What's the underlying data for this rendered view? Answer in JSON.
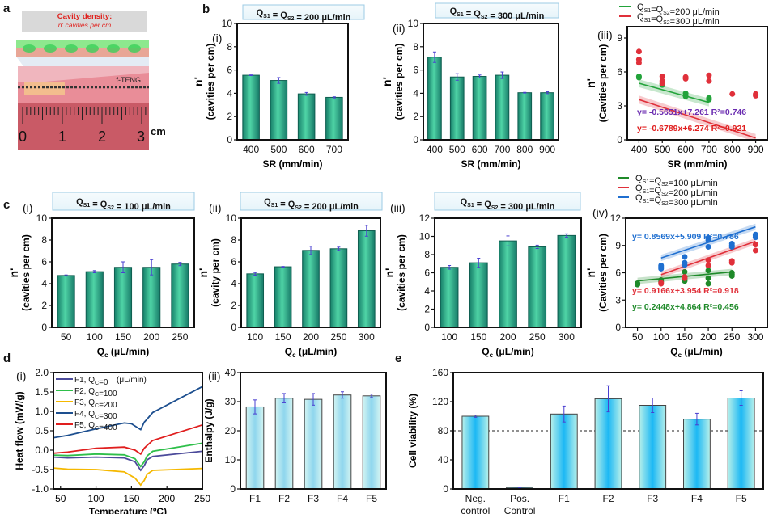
{
  "figure": {
    "panel_labels": [
      "a",
      "b",
      "c",
      "d",
      "e"
    ],
    "panel_a": {
      "caption_title": "Cavity density:",
      "caption_subtitle": "n' cavities per cm",
      "device_label": "f-TENG",
      "ruler_numbers": [
        "0",
        "1",
        "2",
        "3"
      ],
      "ruler_unit": "cm",
      "colors": {
        "caption_text": "#e0211d",
        "ruler": "#c0505a",
        "top_layer": "#7be07b"
      }
    }
  },
  "chart_data": [
    {
      "id": "b-i",
      "panel": "b",
      "sublabel": "(i)",
      "type": "bar",
      "header": {
        "q": "Q",
        "s1": "S1",
        "s2": "S2",
        "text": "= 200 μL/min",
        "full": "QS1 = QS2 = 200 μL/min"
      },
      "categories": [
        "400",
        "500",
        "600",
        "700"
      ],
      "values": [
        5.55,
        5.1,
        3.95,
        3.65
      ],
      "errors": [
        0.03,
        0.25,
        0.12,
        0.05
      ],
      "xlabel": "SR (mm/min)",
      "ylabel_main": "n'",
      "ylabel_sub": "(cavities per cm)",
      "ylim": [
        0,
        10
      ],
      "yticks": [
        0,
        2,
        4,
        6,
        8,
        10
      ],
      "bar_color": "#2bb58e"
    },
    {
      "id": "b-ii",
      "panel": "b",
      "sublabel": "(ii)",
      "type": "bar",
      "header": {
        "q": "Q",
        "s1": "S1",
        "s2": "S2",
        "text": "= 300 μL/min",
        "full": "QS1 = QS2 = 300 μL/min"
      },
      "categories": [
        "400",
        "500",
        "600",
        "700",
        "800",
        "900"
      ],
      "values": [
        7.1,
        5.4,
        5.45,
        5.55,
        4.05,
        4.05
      ],
      "errors": [
        0.45,
        0.28,
        0.12,
        0.28,
        0.03,
        0.08
      ],
      "xlabel": "SR (mm/min)",
      "ylabel_main": "n'",
      "ylabel_sub": "(cavities per cm)",
      "ylim": [
        0,
        10
      ],
      "yticks": [
        0,
        2,
        4,
        6,
        8,
        10
      ],
      "bar_color": "#2bb58e"
    },
    {
      "id": "b-iii",
      "panel": "b",
      "sublabel": "(iii)",
      "type": "scatter",
      "xlabel": "SR (mm/min)",
      "ylabel_main": "n'",
      "ylabel_sub": "(Cavities per cm)",
      "xlim": [
        350,
        950
      ],
      "xticks": [
        400,
        500,
        600,
        700,
        800,
        900
      ],
      "ylim": [
        0,
        10
      ],
      "yticks": [
        0,
        3,
        6,
        9
      ],
      "series": [
        {
          "name": "QS1=QS2=200 μL/min",
          "legend_q": "Q",
          "legend_text": "=200 μL/min",
          "color": "#22a33a",
          "points": [
            [
              400,
              5.5
            ],
            [
              400,
              5.6
            ],
            [
              500,
              4.85
            ],
            [
              500,
              4.95
            ],
            [
              600,
              3.85
            ],
            [
              600,
              4.1
            ],
            [
              700,
              3.55
            ],
            [
              700,
              3.7
            ]
          ],
          "fit": {
            "slope_per_100": -0.5651,
            "intercept": 7.261,
            "x_range": [
              400,
              700
            ]
          },
          "equation": "y= -0.5651x+7.261",
          "r2": "R²=0.746",
          "eq_color": "#6a2bb0"
        },
        {
          "name": "QS1=QS2=300 μL/min",
          "legend_q": "Q",
          "legend_text": "=300 μL/min",
          "color": "#e0303a",
          "points": [
            [
              400,
              7.8
            ],
            [
              400,
              7.1
            ],
            [
              400,
              6.8
            ],
            [
              500,
              5.6
            ],
            [
              500,
              5.2
            ],
            [
              500,
              5.0
            ],
            [
              600,
              5.55
            ],
            [
              600,
              5.4
            ],
            [
              700,
              5.7
            ],
            [
              700,
              5.2
            ],
            [
              800,
              4.05
            ],
            [
              900,
              4.05
            ],
            [
              900,
              3.9
            ]
          ],
          "fit": {
            "slope_per_100": -0.6789,
            "intercept": 6.274,
            "x_range": [
              400,
              900
            ]
          },
          "equation": "y= -0.6789x+6.274",
          "r2": "R²=0.921",
          "eq_color": "#e01e1e"
        }
      ]
    },
    {
      "id": "c-i",
      "panel": "c",
      "sublabel": "(i)",
      "type": "bar",
      "header": {
        "q": "Q",
        "s1": "S1",
        "s2": "S2",
        "text": "= 100 μL/min",
        "full": "QS1 = QS2 = 100 μL/min"
      },
      "categories": [
        "50",
        "100",
        "150",
        "200",
        "250"
      ],
      "values": [
        4.75,
        5.1,
        5.5,
        5.5,
        5.8
      ],
      "errors": [
        0.05,
        0.1,
        0.5,
        0.7,
        0.15
      ],
      "xlabel": "Qc (μL/min)",
      "ylabel_main": "n'",
      "ylabel_sub": "(cavities per cm)",
      "ylim": [
        0,
        10
      ],
      "yticks": [
        0,
        2,
        4,
        6,
        8,
        10
      ],
      "bar_color": "#2bb58e"
    },
    {
      "id": "c-ii",
      "panel": "c",
      "sublabel": "(ii)",
      "type": "bar",
      "header": {
        "q": "Q",
        "s1": "S1",
        "s2": "S2",
        "text": "= 200 μL/min",
        "full": "QS1 = QS2 = 200 μL/min"
      },
      "categories": [
        "100",
        "150",
        "200",
        "250",
        "300"
      ],
      "values": [
        4.9,
        5.55,
        7.05,
        7.2,
        8.85
      ],
      "errors": [
        0.12,
        0.03,
        0.38,
        0.15,
        0.5
      ],
      "xlabel": "Qc (μL/min)",
      "ylabel_main": "n'",
      "ylabel_sub": "(cavity per cm)",
      "ylim": [
        0,
        10
      ],
      "yticks": [
        0,
        2,
        4,
        6,
        8,
        10
      ],
      "bar_color": "#2bb58e"
    },
    {
      "id": "c-iii",
      "panel": "c",
      "sublabel": "(iii)",
      "type": "bar",
      "header": {
        "q": "Q",
        "s1": "S1",
        "s2": "S2",
        "text": "= 300 μL/min",
        "full": "QS1 = QS2 = 300 μL/min"
      },
      "categories": [
        "100",
        "150",
        "200",
        "250",
        "300"
      ],
      "values": [
        6.6,
        7.1,
        9.5,
        8.85,
        10.1
      ],
      "errors": [
        0.2,
        0.5,
        0.55,
        0.18,
        0.18
      ],
      "xlabel": "Qc (μL/min)",
      "ylabel_main": "n'",
      "ylabel_sub": "(cavities per cm)",
      "ylim": [
        0,
        12
      ],
      "yticks": [
        0,
        2,
        4,
        6,
        8,
        10,
        12
      ],
      "bar_color": "#2bb58e"
    },
    {
      "id": "c-iv",
      "panel": "c",
      "sublabel": "(iv)",
      "type": "scatter",
      "xlabel": "Qc (μL/min)",
      "ylabel_main": "n'",
      "ylabel_sub": "(Cavities per cm)",
      "xlim": [
        25,
        325
      ],
      "xticks": [
        50,
        100,
        150,
        200,
        250,
        300
      ],
      "ylim": [
        0,
        12
      ],
      "yticks": [
        0,
        3,
        6,
        9,
        12
      ],
      "series": [
        {
          "name": "QS1=QS2=100 μL/min",
          "legend_q": "Q",
          "legend_text": "=100 μL/min",
          "color": "#1f8a2a",
          "points": [
            [
              50,
              4.7
            ],
            [
              50,
              4.85
            ],
            [
              100,
              5.0
            ],
            [
              100,
              5.2
            ],
            [
              150,
              5.1
            ],
            [
              150,
              5.3
            ],
            [
              150,
              6.1
            ],
            [
              200,
              4.8
            ],
            [
              200,
              5.4
            ],
            [
              200,
              6.25
            ],
            [
              250,
              5.65
            ],
            [
              250,
              5.8
            ],
            [
              250,
              6.0
            ]
          ],
          "fit": {
            "slope_per_50": 0.2448,
            "intercept": 4.864,
            "x_range": [
              50,
              250
            ]
          },
          "equation": "y= 0.2448x+4.864",
          "r2": "R²=0.456",
          "eq_color": "#1f8a2a"
        },
        {
          "name": "QS1=QS2=200 μL/min",
          "legend_q": "Q",
          "legend_text": "=200 μL/min",
          "color": "#e0303a",
          "points": [
            [
              100,
              4.8
            ],
            [
              100,
              4.9
            ],
            [
              150,
              5.4
            ],
            [
              150,
              5.55
            ],
            [
              200,
              6.8
            ],
            [
              200,
              7.4
            ],
            [
              250,
              7.1
            ],
            [
              250,
              7.3
            ],
            [
              300,
              8.45
            ],
            [
              300,
              9.1
            ]
          ],
          "fit": {
            "slope_per_50": 0.9166,
            "intercept": 3.954,
            "x_range": [
              100,
              300
            ]
          },
          "equation": "y= 0.9166x+3.954",
          "r2": "R²=0.918",
          "eq_color": "#e0303a"
        },
        {
          "name": "QS1=QS2=300 μL/min",
          "legend_q": "Q",
          "legend_text": "=300 μL/min",
          "color": "#1f6fd0",
          "points": [
            [
              100,
              6.45
            ],
            [
              100,
              6.65
            ],
            [
              100,
              6.8
            ],
            [
              150,
              6.85
            ],
            [
              150,
              7.1
            ],
            [
              150,
              7.75
            ],
            [
              200,
              8.85
            ],
            [
              200,
              9.6
            ],
            [
              200,
              9.85
            ],
            [
              250,
              8.85
            ],
            [
              250,
              9.0
            ],
            [
              250,
              9.2
            ],
            [
              300,
              9.9
            ],
            [
              300,
              10.1
            ],
            [
              300,
              10.2
            ]
          ],
          "fit": {
            "slope_per_50": 0.8569,
            "intercept": 5.909,
            "x_range": [
              100,
              300
            ]
          },
          "equation": "y= 0.8569x+5.909",
          "r2": "R²=0.786",
          "eq_color": "#1f6fd0"
        }
      ]
    },
    {
      "id": "d-i",
      "panel": "d",
      "sublabel": "(i)",
      "type": "line",
      "xlabel": "Temperature (ºC)",
      "ylabel": "Heat flow (mW/g)",
      "xlim": [
        40,
        250
      ],
      "xticks": [
        50,
        100,
        150,
        200,
        250
      ],
      "ylim": [
        -1.0,
        2.0
      ],
      "yticks": [
        "-1.0",
        "-0.5",
        "0.0",
        "0.5",
        "1.0",
        "1.5",
        "2.0"
      ],
      "legend_unit": "(μL/min)",
      "series": [
        {
          "name": "F1, QC=0",
          "label": "F1, Q",
          "sub": "C",
          "val": "=0",
          "color": "#4b4a9a",
          "points": [
            [
              40,
              -0.18
            ],
            [
              60,
              -0.2
            ],
            [
              100,
              -0.18
            ],
            [
              140,
              -0.2
            ],
            [
              155,
              -0.3
            ],
            [
              163,
              -0.52
            ],
            [
              168,
              -0.4
            ],
            [
              172,
              -0.25
            ],
            [
              180,
              -0.16
            ],
            [
              250,
              -0.03
            ]
          ]
        },
        {
          "name": "F2, QC=100",
          "label": "F2, Q",
          "sub": "C",
          "val": "=100",
          "color": "#2ebf4a",
          "points": [
            [
              40,
              -0.13
            ],
            [
              60,
              -0.14
            ],
            [
              100,
              -0.1
            ],
            [
              140,
              -0.12
            ],
            [
              155,
              -0.22
            ],
            [
              163,
              -0.42
            ],
            [
              168,
              -0.3
            ],
            [
              172,
              -0.15
            ],
            [
              180,
              -0.03
            ],
            [
              250,
              0.18
            ]
          ]
        },
        {
          "name": "F3, QC=200",
          "label": "F3, Q",
          "sub": "C",
          "val": "=200",
          "color": "#f5b800",
          "points": [
            [
              40,
              -0.46
            ],
            [
              60,
              -0.49
            ],
            [
              100,
              -0.5
            ],
            [
              140,
              -0.56
            ],
            [
              155,
              -0.72
            ],
            [
              163,
              -0.9
            ],
            [
              168,
              -0.78
            ],
            [
              172,
              -0.62
            ],
            [
              180,
              -0.52
            ],
            [
              250,
              -0.47
            ]
          ]
        },
        {
          "name": "F4, QC=300",
          "label": "F4, Q",
          "sub": "C",
          "val": "=300",
          "color": "#1d4f8f",
          "points": [
            [
              40,
              0.32
            ],
            [
              60,
              0.38
            ],
            [
              100,
              0.55
            ],
            [
              140,
              0.7
            ],
            [
              150,
              0.68
            ],
            [
              163,
              0.53
            ],
            [
              168,
              0.72
            ],
            [
              172,
              0.8
            ],
            [
              180,
              0.97
            ],
            [
              250,
              1.64
            ]
          ]
        },
        {
          "name": "F5, QC=400",
          "label": "F5, Q",
          "sub": "C",
          "val": "=400",
          "color": "#e01e1e",
          "points": [
            [
              40,
              -0.08
            ],
            [
              60,
              -0.05
            ],
            [
              100,
              0.05
            ],
            [
              140,
              0.08
            ],
            [
              155,
              0.0
            ],
            [
              163,
              -0.1
            ],
            [
              168,
              0.05
            ],
            [
              172,
              0.12
            ],
            [
              180,
              0.25
            ],
            [
              250,
              0.65
            ]
          ]
        }
      ]
    },
    {
      "id": "d-ii",
      "panel": "d",
      "sublabel": "(ii)",
      "type": "bar",
      "categories": [
        "F1",
        "F2",
        "F3",
        "F4",
        "F5"
      ],
      "values": [
        28.2,
        31.2,
        30.8,
        32.3,
        32.0
      ],
      "errors": [
        2.4,
        1.6,
        2.0,
        1.1,
        0.6
      ],
      "xlabel": "",
      "ylabel": "Enthalpy (J/g)",
      "ylim": [
        0,
        40
      ],
      "yticks": [
        0,
        10,
        20,
        30,
        40
      ],
      "bar_color": "#7fd3ef"
    },
    {
      "id": "e",
      "panel": "e",
      "sublabel": "",
      "type": "bar",
      "categories": [
        "Neg.\ncontrol",
        "Pos.\nControl",
        "F1",
        "F2",
        "F3",
        "F4",
        "F5"
      ],
      "category_lines": [
        [
          "Neg.",
          "control"
        ],
        [
          "Pos.",
          "Control"
        ],
        [
          "F1"
        ],
        [
          "F2"
        ],
        [
          "F3"
        ],
        [
          "F4"
        ],
        [
          "F5"
        ]
      ],
      "values": [
        100,
        2,
        103,
        124,
        115,
        96,
        125
      ],
      "errors": [
        1.5,
        0.5,
        11,
        18,
        10,
        8,
        10
      ],
      "reference_line": 80,
      "xlabel": "",
      "ylabel": "Cell viability (%)",
      "ylim": [
        0,
        160
      ],
      "yticks": [
        0,
        40,
        80,
        120,
        160
      ],
      "bar_color": "#35c4f0"
    }
  ]
}
